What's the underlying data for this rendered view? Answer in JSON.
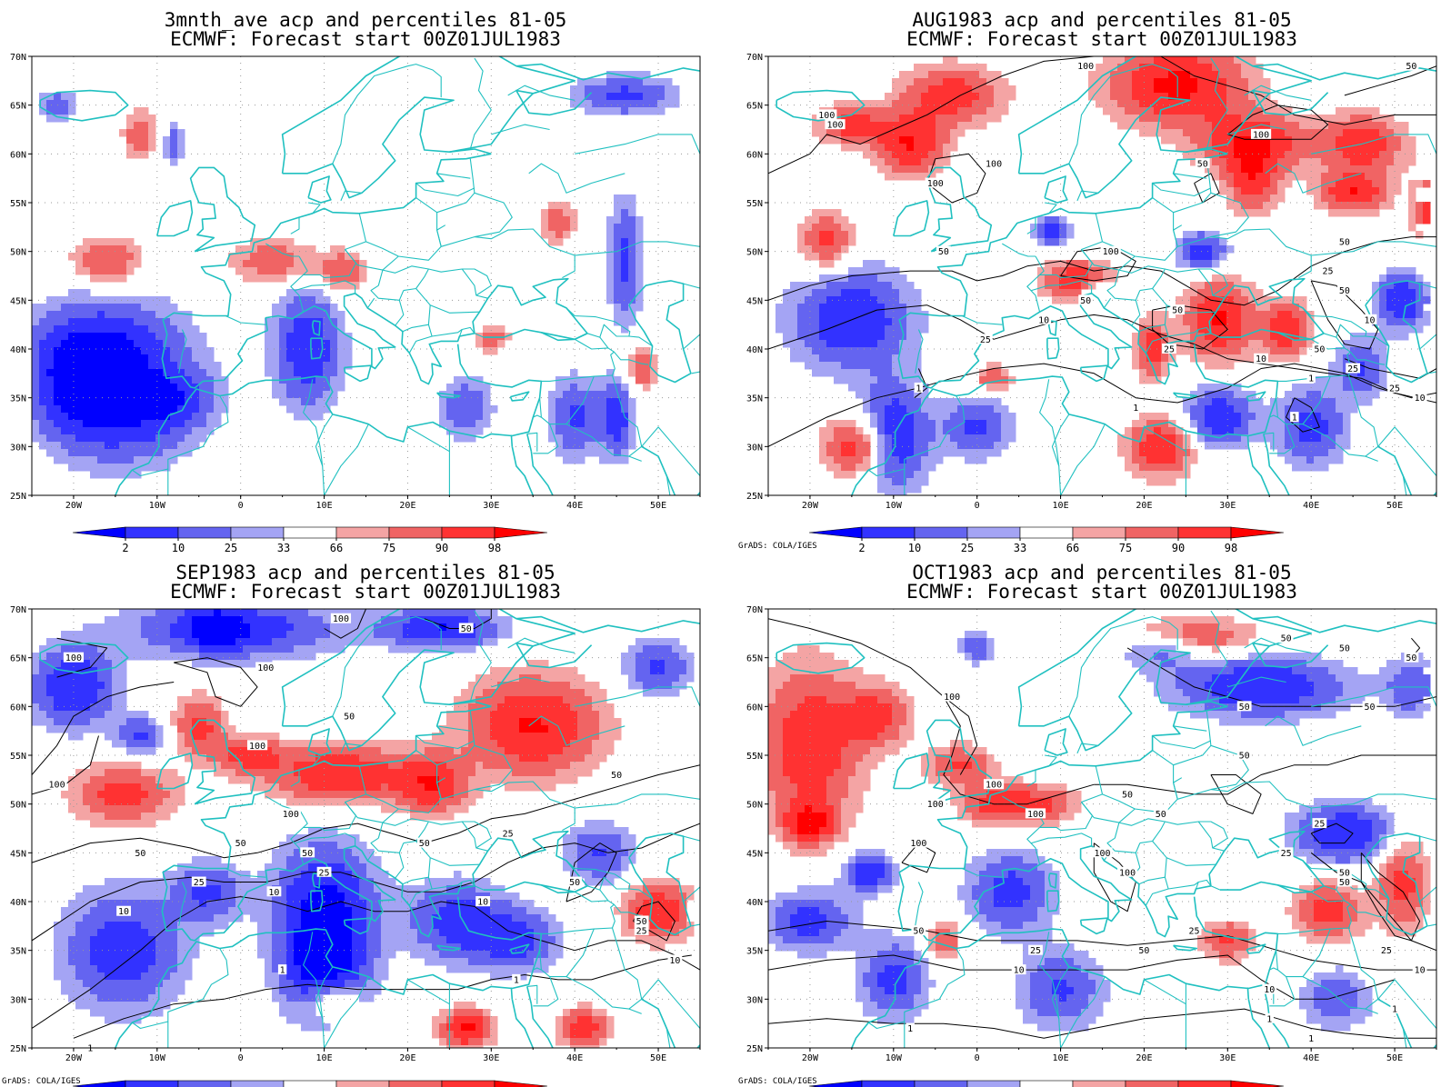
{
  "credit": "GrADS: COLA/IGES",
  "x_ticks": [
    "20W",
    "10W",
    "0",
    "10E",
    "20E",
    "30E",
    "40E",
    "50E"
  ],
  "y_ticks": [
    "70N",
    "65N",
    "60N",
    "55N",
    "50N",
    "45N",
    "40N",
    "35N",
    "30N",
    "25N"
  ],
  "colorbar": {
    "labels": [
      "2",
      "10",
      "25",
      "33",
      "66",
      "75",
      "90",
      "98"
    ],
    "colors": [
      "#0000ff",
      "#3232ff",
      "#6464f0",
      "#a4a4f4",
      "#ffffff",
      "#f4a4a4",
      "#f06464",
      "#ff3232",
      "#ff0000"
    ]
  },
  "colors": {
    "coast": "#20c0c0",
    "contour": "#000000",
    "grid": "#999999"
  },
  "panels": [
    {
      "id": "3mnth",
      "title1": "3mnth_ave acp and percentiles 81-05",
      "title2": "ECMWF: Forecast start 00Z01JUL1983",
      "credit": false,
      "contours": false,
      "contour_labels": []
    },
    {
      "id": "aug",
      "title1": "AUG1983 acp and percentiles 81-05",
      "title2": "ECMWF: Forecast start 00Z01JUL1983",
      "credit": true,
      "contours": true,
      "contour_labels": [
        {
          "t": "100",
          "lon": 13,
          "lat": 69
        },
        {
          "t": "100",
          "lon": -18,
          "lat": 64
        },
        {
          "t": "100",
          "lon": -17,
          "lat": 63
        },
        {
          "t": "100",
          "lon": 34,
          "lat": 62
        },
        {
          "t": "100",
          "lon": -5,
          "lat": 57
        },
        {
          "t": "100",
          "lon": 2,
          "lat": 59
        },
        {
          "t": "50",
          "lon": 27,
          "lat": 59
        },
        {
          "t": "50",
          "lon": 52,
          "lat": 69
        },
        {
          "t": "50",
          "lon": 44,
          "lat": 51
        },
        {
          "t": "50",
          "lon": -4,
          "lat": 50
        },
        {
          "t": "100",
          "lon": 16,
          "lat": 50
        },
        {
          "t": "25",
          "lon": 42,
          "lat": 48
        },
        {
          "t": "50",
          "lon": 13,
          "lat": 45
        },
        {
          "t": "50",
          "lon": 24,
          "lat": 44
        },
        {
          "t": "50",
          "lon": 44,
          "lat": 46
        },
        {
          "t": "10",
          "lon": 8,
          "lat": 43
        },
        {
          "t": "25",
          "lon": 1,
          "lat": 41
        },
        {
          "t": "25",
          "lon": 23,
          "lat": 40
        },
        {
          "t": "10",
          "lon": 47,
          "lat": 43
        },
        {
          "t": "50",
          "lon": 41,
          "lat": 40
        },
        {
          "t": "10",
          "lon": 34,
          "lat": 39
        },
        {
          "t": "25",
          "lon": 45,
          "lat": 38
        },
        {
          "t": "25",
          "lon": 50,
          "lat": 36
        },
        {
          "t": "10",
          "lon": 53,
          "lat": 35
        },
        {
          "t": "1",
          "lon": -7,
          "lat": 36
        },
        {
          "t": "1",
          "lon": 40,
          "lat": 37
        },
        {
          "t": "1",
          "lon": 19,
          "lat": 34
        },
        {
          "t": "1",
          "lon": 38,
          "lat": 33
        }
      ]
    },
    {
      "id": "sep",
      "title1": "SEP1983 acp and percentiles 81-05",
      "title2": "ECMWF: Forecast start 00Z01JUL1983",
      "credit": true,
      "contours": true,
      "contour_labels": [
        {
          "t": "100",
          "lon": -20,
          "lat": 65
        },
        {
          "t": "100",
          "lon": 3,
          "lat": 64
        },
        {
          "t": "100",
          "lon": 12,
          "lat": 69
        },
        {
          "t": "50",
          "lon": 27,
          "lat": 68
        },
        {
          "t": "50",
          "lon": 13,
          "lat": 59
        },
        {
          "t": "100",
          "lon": 2,
          "lat": 56
        },
        {
          "t": "100",
          "lon": -22,
          "lat": 52
        },
        {
          "t": "50",
          "lon": 45,
          "lat": 53
        },
        {
          "t": "100",
          "lon": 6,
          "lat": 49
        },
        {
          "t": "25",
          "lon": 32,
          "lat": 47
        },
        {
          "t": "50",
          "lon": 0,
          "lat": 46
        },
        {
          "t": "50",
          "lon": 8,
          "lat": 45
        },
        {
          "t": "50",
          "lon": 22,
          "lat": 46
        },
        {
          "t": "50",
          "lon": -12,
          "lat": 45
        },
        {
          "t": "25",
          "lon": 10,
          "lat": 43
        },
        {
          "t": "25",
          "lon": -5,
          "lat": 42
        },
        {
          "t": "10",
          "lon": 4,
          "lat": 41
        },
        {
          "t": "10",
          "lon": -14,
          "lat": 39
        },
        {
          "t": "10",
          "lon": 29,
          "lat": 40
        },
        {
          "t": "50",
          "lon": 40,
          "lat": 42
        },
        {
          "t": "50",
          "lon": 48,
          "lat": 38
        },
        {
          "t": "25",
          "lon": 48,
          "lat": 37
        },
        {
          "t": "10",
          "lon": 52,
          "lat": 34
        },
        {
          "t": "1",
          "lon": 5,
          "lat": 33
        },
        {
          "t": "1",
          "lon": 33,
          "lat": 32
        },
        {
          "t": "1",
          "lon": -18,
          "lat": 25
        }
      ]
    },
    {
      "id": "oct",
      "title1": "OCT1983 acp and percentiles 81-05",
      "title2": "ECMWF: Forecast start 00Z01JUL1983",
      "credit": true,
      "contours": true,
      "contour_labels": [
        {
          "t": "50",
          "lon": 37,
          "lat": 67
        },
        {
          "t": "50",
          "lon": 44,
          "lat": 66
        },
        {
          "t": "50",
          "lon": 52,
          "lat": 65
        },
        {
          "t": "100",
          "lon": -3,
          "lat": 61
        },
        {
          "t": "50",
          "lon": 32,
          "lat": 60
        },
        {
          "t": "50",
          "lon": 47,
          "lat": 60
        },
        {
          "t": "50",
          "lon": 32,
          "lat": 55
        },
        {
          "t": "100",
          "lon": 2,
          "lat": 52
        },
        {
          "t": "100",
          "lon": -5,
          "lat": 50
        },
        {
          "t": "50",
          "lon": 18,
          "lat": 51
        },
        {
          "t": "100",
          "lon": 7,
          "lat": 49
        },
        {
          "t": "50",
          "lon": 22,
          "lat": 49
        },
        {
          "t": "25",
          "lon": 41,
          "lat": 48
        },
        {
          "t": "25",
          "lon": 37,
          "lat": 45
        },
        {
          "t": "100",
          "lon": -7,
          "lat": 46
        },
        {
          "t": "100",
          "lon": 15,
          "lat": 45
        },
        {
          "t": "100",
          "lon": 18,
          "lat": 43
        },
        {
          "t": "50",
          "lon": 44,
          "lat": 43
        },
        {
          "t": "50",
          "lon": 44,
          "lat": 42
        },
        {
          "t": "50",
          "lon": -7,
          "lat": 37
        },
        {
          "t": "25",
          "lon": 26,
          "lat": 37
        },
        {
          "t": "50",
          "lon": 20,
          "lat": 35
        },
        {
          "t": "25",
          "lon": 7,
          "lat": 35
        },
        {
          "t": "25",
          "lon": 49,
          "lat": 35
        },
        {
          "t": "10",
          "lon": 5,
          "lat": 33
        },
        {
          "t": "10",
          "lon": 53,
          "lat": 33
        },
        {
          "t": "10",
          "lon": 35,
          "lat": 31
        },
        {
          "t": "1",
          "lon": 35,
          "lat": 28
        },
        {
          "t": "1",
          "lon": 40,
          "lat": 26
        },
        {
          "t": "1",
          "lon": 50,
          "lat": 29
        },
        {
          "t": "1",
          "lon": -8,
          "lat": 27
        }
      ]
    }
  ]
}
